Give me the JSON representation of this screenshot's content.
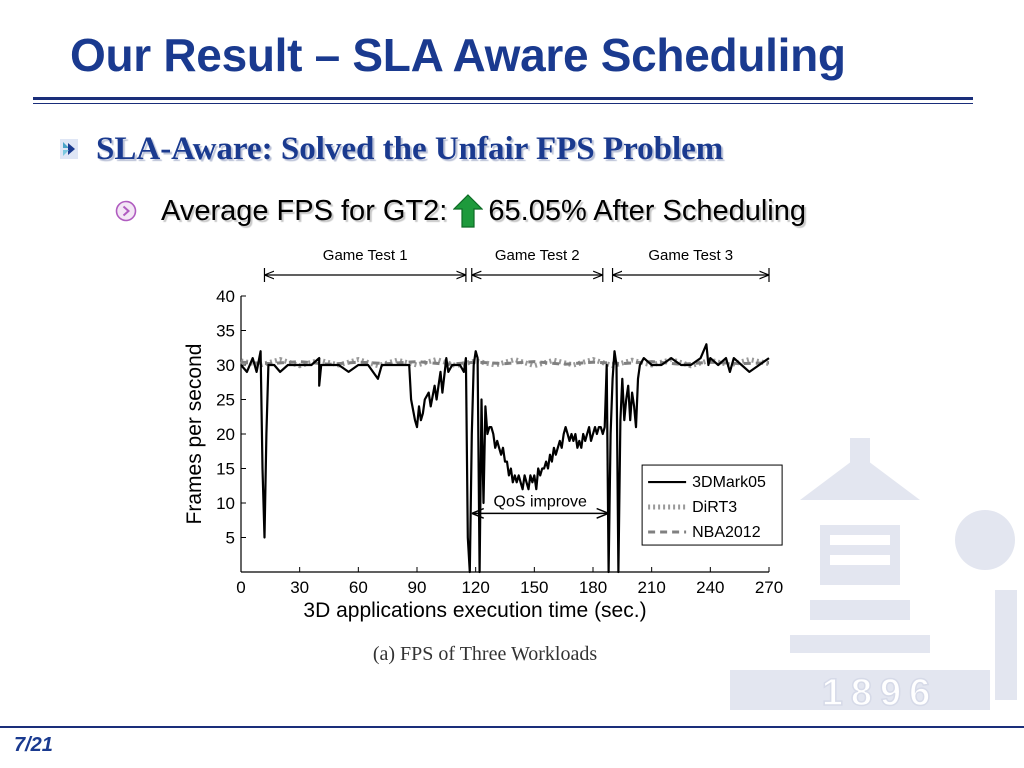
{
  "slide": {
    "title": "Our Result – SLA Aware Scheduling",
    "bullet_l1": "SLA-Aware: Solved the Unfair FPS Problem",
    "bullet_l2_prefix": "Average FPS for GT2:",
    "bullet_l2_suffix": "65.05% After Scheduling",
    "page_number": "7/21",
    "accent_color": "#1a3a8f",
    "arrow_color": "#1e9a3c",
    "icons": {
      "bullet_l1": "chevron-bullet-icon",
      "bullet_l2": "circled-chevron-icon",
      "inline": "up-arrow-icon",
      "watermark": "university-emblem-icon"
    },
    "watermark_text": "1896"
  },
  "chart_data": {
    "type": "line",
    "caption": "(a) FPS of Three Workloads",
    "xlabel": "3D applications execution time (sec.)",
    "ylabel": "Frames per second",
    "xlim": [
      0,
      270
    ],
    "ylim": [
      0,
      40
    ],
    "xticks": [
      0,
      30,
      60,
      90,
      120,
      150,
      180,
      210,
      240,
      270
    ],
    "yticks": [
      5,
      10,
      15,
      20,
      25,
      30,
      35,
      40
    ],
    "grid": false,
    "legend_position": "right",
    "segments": [
      {
        "label": "Game Test 1",
        "from": 12,
        "to": 115
      },
      {
        "label": "Game Test 2",
        "from": 118,
        "to": 185
      },
      {
        "label": "Game Test 3",
        "from": 190,
        "to": 270
      }
    ],
    "annotation": {
      "text": "QoS improve",
      "from": 118,
      "to": 188
    },
    "series": [
      {
        "name": "3DMark05",
        "style": "solid",
        "color": "#000000",
        "points": [
          [
            0,
            30
          ],
          [
            3,
            29
          ],
          [
            6,
            31
          ],
          [
            8,
            29
          ],
          [
            10,
            32
          ],
          [
            11,
            15
          ],
          [
            12,
            5
          ],
          [
            13,
            20
          ],
          [
            14,
            30
          ],
          [
            17,
            30
          ],
          [
            20,
            29
          ],
          [
            24,
            30
          ],
          [
            28,
            30
          ],
          [
            32,
            30
          ],
          [
            36,
            30
          ],
          [
            40,
            31
          ],
          [
            40,
            27
          ],
          [
            41,
            30
          ],
          [
            45,
            30
          ],
          [
            50,
            30
          ],
          [
            55,
            29
          ],
          [
            60,
            30
          ],
          [
            65,
            30
          ],
          [
            70,
            28
          ],
          [
            72,
            30
          ],
          [
            80,
            30
          ],
          [
            86,
            30
          ],
          [
            87,
            25
          ],
          [
            89,
            22
          ],
          [
            90,
            21
          ],
          [
            91,
            24
          ],
          [
            92,
            22
          ],
          [
            93,
            23
          ],
          [
            94,
            25
          ],
          [
            96,
            26
          ],
          [
            97,
            24
          ],
          [
            99,
            27
          ],
          [
            100,
            25
          ],
          [
            101,
            27
          ],
          [
            102,
            29
          ],
          [
            103,
            26
          ],
          [
            105,
            31
          ],
          [
            106,
            29
          ],
          [
            108,
            30
          ],
          [
            112,
            30
          ],
          [
            114,
            29
          ],
          [
            115,
            31
          ],
          [
            116,
            5
          ],
          [
            117,
            0
          ],
          [
            118,
            20
          ],
          [
            119,
            30
          ],
          [
            120,
            32
          ],
          [
            121,
            31
          ],
          [
            122,
            0
          ],
          [
            123,
            25
          ],
          [
            124,
            10
          ],
          [
            125,
            24
          ],
          [
            126,
            20
          ],
          [
            127,
            21
          ],
          [
            128,
            21
          ],
          [
            129,
            20
          ],
          [
            130,
            18
          ],
          [
            131,
            19
          ],
          [
            132,
            18
          ],
          [
            133,
            17
          ],
          [
            134,
            18
          ],
          [
            135,
            16
          ],
          [
            136,
            16
          ],
          [
            137,
            14
          ],
          [
            138,
            15
          ],
          [
            139,
            13
          ],
          [
            140,
            14
          ],
          [
            141,
            13
          ],
          [
            142,
            14
          ],
          [
            143,
            13
          ],
          [
            144,
            12
          ],
          [
            145,
            14
          ],
          [
            146,
            13
          ],
          [
            147,
            12
          ],
          [
            148,
            14
          ],
          [
            149,
            13
          ],
          [
            150,
            14
          ],
          [
            151,
            12
          ],
          [
            152,
            15
          ],
          [
            153,
            14
          ],
          [
            154,
            15
          ],
          [
            155,
            15
          ],
          [
            156,
            16
          ],
          [
            157,
            15
          ],
          [
            158,
            17
          ],
          [
            159,
            16
          ],
          [
            160,
            18
          ],
          [
            161,
            17
          ],
          [
            162,
            18
          ],
          [
            163,
            19
          ],
          [
            164,
            18
          ],
          [
            165,
            20
          ],
          [
            166,
            21
          ],
          [
            167,
            20
          ],
          [
            168,
            19
          ],
          [
            169,
            20
          ],
          [
            170,
            19
          ],
          [
            171,
            20
          ],
          [
            172,
            18
          ],
          [
            173,
            19
          ],
          [
            174,
            18
          ],
          [
            175,
            20
          ],
          [
            176,
            19
          ],
          [
            177,
            20
          ],
          [
            178,
            21
          ],
          [
            179,
            19
          ],
          [
            180,
            20
          ],
          [
            181,
            21
          ],
          [
            182,
            20
          ],
          [
            183,
            21
          ],
          [
            184,
            21
          ],
          [
            185,
            20
          ],
          [
            186,
            21
          ],
          [
            187,
            30
          ],
          [
            188,
            0
          ],
          [
            189,
            20
          ],
          [
            190,
            28
          ],
          [
            191,
            32
          ],
          [
            192,
            30
          ],
          [
            193,
            0
          ],
          [
            194,
            22
          ],
          [
            195,
            28
          ],
          [
            196,
            22
          ],
          [
            197,
            25
          ],
          [
            198,
            27
          ],
          [
            199,
            22
          ],
          [
            200,
            26
          ],
          [
            201,
            24
          ],
          [
            202,
            21
          ],
          [
            203,
            28
          ],
          [
            204,
            30
          ],
          [
            206,
            31
          ],
          [
            210,
            30
          ],
          [
            215,
            30
          ],
          [
            220,
            31
          ],
          [
            225,
            30
          ],
          [
            230,
            30
          ],
          [
            235,
            31
          ],
          [
            238,
            33
          ],
          [
            239,
            30
          ],
          [
            240,
            31
          ],
          [
            244,
            30
          ],
          [
            248,
            31
          ],
          [
            250,
            29
          ],
          [
            252,
            31
          ],
          [
            256,
            30
          ],
          [
            260,
            29
          ],
          [
            265,
            30
          ],
          [
            270,
            31
          ]
        ]
      },
      {
        "name": "DiRT3",
        "style": "dotted",
        "color": "#9a9a9a",
        "points": [
          [
            0,
            30.6
          ],
          [
            10,
            30.0
          ],
          [
            20,
            30.8
          ],
          [
            30,
            29.9
          ],
          [
            40,
            30.7
          ],
          [
            50,
            30.0
          ],
          [
            60,
            30.8
          ],
          [
            70,
            29.9
          ],
          [
            80,
            30.7
          ],
          [
            90,
            30.0
          ],
          [
            100,
            30.8
          ],
          [
            110,
            29.9
          ],
          [
            120,
            30.6
          ],
          [
            130,
            30.0
          ],
          [
            140,
            30.8
          ],
          [
            150,
            29.9
          ],
          [
            160,
            30.7
          ],
          [
            170,
            30.0
          ],
          [
            180,
            30.8
          ],
          [
            190,
            29.9
          ],
          [
            200,
            30.7
          ],
          [
            210,
            30.0
          ],
          [
            220,
            30.8
          ],
          [
            230,
            29.9
          ],
          [
            240,
            30.7
          ],
          [
            250,
            30.0
          ],
          [
            260,
            30.8
          ],
          [
            270,
            30.2
          ]
        ]
      },
      {
        "name": "NBA2012",
        "style": "dashed",
        "color": "#808080",
        "points": [
          [
            0,
            30.4
          ],
          [
            15,
            30.2
          ],
          [
            30,
            30.5
          ],
          [
            45,
            30.1
          ],
          [
            60,
            30.4
          ],
          [
            75,
            30.2
          ],
          [
            90,
            30.5
          ],
          [
            105,
            30.1
          ],
          [
            120,
            30.4
          ],
          [
            135,
            30.2
          ],
          [
            150,
            30.5
          ],
          [
            165,
            30.1
          ],
          [
            180,
            30.4
          ],
          [
            195,
            30.2
          ],
          [
            210,
            30.5
          ],
          [
            225,
            30.1
          ],
          [
            240,
            30.4
          ],
          [
            255,
            30.2
          ],
          [
            270,
            30.3
          ]
        ]
      }
    ]
  }
}
